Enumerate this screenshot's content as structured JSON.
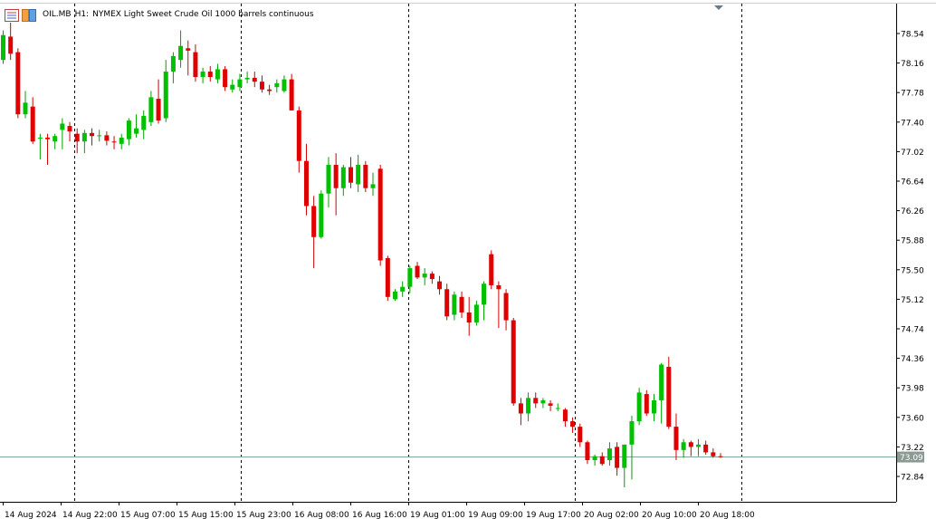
{
  "header": {
    "symbol": "OIL.MB",
    "timeframe": "H1:",
    "description": "NYMEX Light Sweet Crude Oil 1000 barrels continuous"
  },
  "colors": {
    "bull": "#00c000",
    "bear": "#e00000",
    "wick_bull": "#00a000",
    "wick_bear": "#d00000",
    "bid_line": "#7fa89a",
    "bid_tag": "#8c9a94",
    "period_sep": "#000000",
    "axis": "#000000"
  },
  "chart_data": {
    "type": "candlestick",
    "ylim": [
      72.6,
      78.72
    ],
    "y_ticks": [
      "78.54",
      "78.16",
      "77.78",
      "77.40",
      "77.02",
      "76.64",
      "76.26",
      "75.88",
      "75.50",
      "75.12",
      "74.74",
      "74.36",
      "73.98",
      "73.60",
      "73.22",
      "72.84"
    ],
    "x_ticks": [
      "14 Aug 2024",
      "14 Aug 22:00",
      "15 Aug 07:00",
      "15 Aug 15:00",
      "15 Aug 23:00",
      "16 Aug 08:00",
      "16 Aug 16:00",
      "19 Aug 01:00",
      "19 Aug 09:00",
      "19 Aug 17:00",
      "20 Aug 02:00",
      "20 Aug 10:00",
      "20 Aug 18:00"
    ],
    "current_price": "73.09",
    "candles": [
      [
        78.2,
        78.58,
        78.15,
        78.52
      ],
      [
        78.5,
        78.68,
        78.2,
        78.28
      ],
      [
        78.3,
        78.35,
        77.45,
        77.5
      ],
      [
        77.5,
        77.8,
        77.45,
        77.65
      ],
      [
        77.6,
        77.72,
        77.12,
        77.15
      ],
      [
        77.2,
        77.25,
        76.92,
        77.2
      ],
      [
        77.2,
        77.25,
        76.85,
        77.18
      ],
      [
        77.15,
        77.25,
        77.05,
        77.22
      ],
      [
        77.3,
        77.45,
        77.05,
        77.38
      ],
      [
        77.35,
        77.4,
        77.15,
        77.28
      ],
      [
        77.25,
        77.32,
        77.0,
        77.15
      ],
      [
        77.15,
        77.3,
        77.0,
        77.26
      ],
      [
        77.26,
        77.32,
        77.1,
        77.22
      ],
      [
        77.22,
        77.3,
        77.15,
        77.23
      ],
      [
        77.23,
        77.28,
        77.1,
        77.16
      ],
      [
        77.15,
        77.22,
        77.05,
        77.14
      ],
      [
        77.12,
        77.25,
        77.05,
        77.2
      ],
      [
        77.18,
        77.45,
        77.1,
        77.42
      ],
      [
        77.25,
        77.5,
        77.2,
        77.32
      ],
      [
        77.3,
        77.55,
        77.18,
        77.48
      ],
      [
        77.4,
        77.8,
        77.35,
        77.72
      ],
      [
        77.7,
        77.95,
        77.38,
        77.42
      ],
      [
        77.45,
        78.2,
        77.4,
        78.05
      ],
      [
        78.05,
        78.3,
        77.9,
        78.25
      ],
      [
        78.2,
        78.58,
        78.1,
        78.38
      ],
      [
        78.35,
        78.45,
        78.0,
        78.32
      ],
      [
        78.3,
        78.4,
        77.92,
        77.98
      ],
      [
        77.98,
        78.1,
        77.9,
        78.05
      ],
      [
        78.05,
        78.12,
        77.92,
        77.98
      ],
      [
        77.95,
        78.15,
        77.9,
        78.08
      ],
      [
        78.08,
        78.12,
        77.8,
        77.85
      ],
      [
        77.82,
        77.95,
        77.78,
        77.88
      ],
      [
        77.85,
        78.02,
        77.8,
        77.95
      ],
      [
        77.95,
        78.05,
        77.9,
        77.97
      ],
      [
        77.97,
        78.05,
        77.85,
        77.92
      ],
      [
        77.92,
        78.0,
        77.78,
        77.82
      ],
      [
        77.82,
        77.88,
        77.75,
        77.8
      ],
      [
        77.85,
        77.95,
        77.78,
        77.9
      ],
      [
        77.8,
        78.0,
        77.78,
        77.95
      ],
      [
        77.95,
        78.02,
        77.55,
        77.55
      ],
      [
        77.55,
        77.6,
        76.75,
        76.9
      ],
      [
        76.9,
        77.12,
        76.2,
        76.32
      ],
      [
        76.32,
        76.45,
        75.52,
        75.92
      ],
      [
        75.92,
        76.52,
        75.9,
        76.48
      ],
      [
        76.48,
        76.95,
        76.3,
        76.85
      ],
      [
        76.85,
        77.0,
        76.2,
        76.55
      ],
      [
        76.55,
        76.85,
        76.45,
        76.82
      ],
      [
        76.82,
        76.95,
        76.55,
        76.62
      ],
      [
        76.6,
        76.98,
        76.5,
        76.85
      ],
      [
        76.85,
        76.9,
        76.5,
        76.55
      ],
      [
        76.55,
        76.75,
        76.45,
        76.6
      ],
      [
        76.8,
        76.85,
        75.55,
        75.62
      ],
      [
        75.65,
        75.68,
        75.1,
        75.15
      ],
      [
        75.12,
        75.25,
        75.1,
        75.22
      ],
      [
        75.22,
        75.35,
        75.15,
        75.28
      ],
      [
        75.28,
        75.55,
        75.2,
        75.52
      ],
      [
        75.55,
        75.6,
        75.38,
        75.4
      ],
      [
        75.4,
        75.52,
        75.3,
        75.45
      ],
      [
        75.45,
        75.48,
        75.32,
        75.38
      ],
      [
        75.35,
        75.42,
        75.18,
        75.25
      ],
      [
        75.25,
        75.32,
        74.85,
        74.9
      ],
      [
        74.92,
        75.22,
        74.85,
        75.18
      ],
      [
        75.15,
        75.22,
        74.88,
        74.95
      ],
      [
        74.95,
        75.15,
        74.65,
        74.82
      ],
      [
        74.82,
        75.1,
        74.78,
        75.05
      ],
      [
        75.05,
        75.35,
        74.85,
        75.32
      ],
      [
        75.7,
        75.75,
        75.25,
        75.3
      ],
      [
        75.3,
        75.35,
        74.75,
        75.25
      ],
      [
        75.2,
        75.25,
        74.72,
        74.85
      ],
      [
        74.85,
        74.88,
        73.75,
        73.78
      ],
      [
        73.78,
        73.85,
        73.5,
        73.65
      ],
      [
        73.65,
        73.92,
        73.55,
        73.85
      ],
      [
        73.85,
        73.92,
        73.72,
        73.78
      ],
      [
        73.78,
        73.85,
        73.72,
        73.82
      ],
      [
        73.78,
        73.82,
        73.68,
        73.75
      ],
      [
        73.72,
        73.78,
        73.68,
        73.72
      ],
      [
        73.7,
        73.72,
        73.48,
        73.55
      ],
      [
        73.55,
        73.6,
        73.4,
        73.48
      ],
      [
        73.48,
        73.52,
        73.22,
        73.28
      ],
      [
        73.28,
        73.3,
        73.0,
        73.05
      ],
      [
        73.05,
        73.12,
        72.98,
        73.1
      ],
      [
        73.1,
        73.15,
        72.98,
        73.0
      ],
      [
        73.05,
        73.28,
        72.98,
        73.2
      ],
      [
        73.22,
        73.28,
        72.85,
        72.95
      ],
      [
        72.95,
        73.25,
        72.7,
        73.25
      ],
      [
        73.25,
        73.62,
        72.8,
        73.55
      ],
      [
        73.55,
        73.98,
        73.5,
        73.92
      ],
      [
        73.9,
        73.95,
        73.62,
        73.65
      ],
      [
        73.65,
        73.9,
        73.55,
        73.82
      ],
      [
        73.82,
        74.3,
        73.52,
        74.28
      ],
      [
        74.25,
        74.38,
        73.45,
        73.48
      ],
      [
        73.48,
        73.65,
        73.05,
        73.18
      ],
      [
        73.18,
        73.32,
        73.08,
        73.28
      ],
      [
        73.28,
        73.3,
        73.1,
        73.22
      ],
      [
        73.22,
        73.32,
        73.1,
        73.25
      ],
      [
        73.25,
        73.3,
        73.12,
        73.15
      ],
      [
        73.15,
        73.2,
        73.08,
        73.1
      ],
      [
        73.1,
        73.14,
        73.08,
        73.09
      ]
    ]
  }
}
